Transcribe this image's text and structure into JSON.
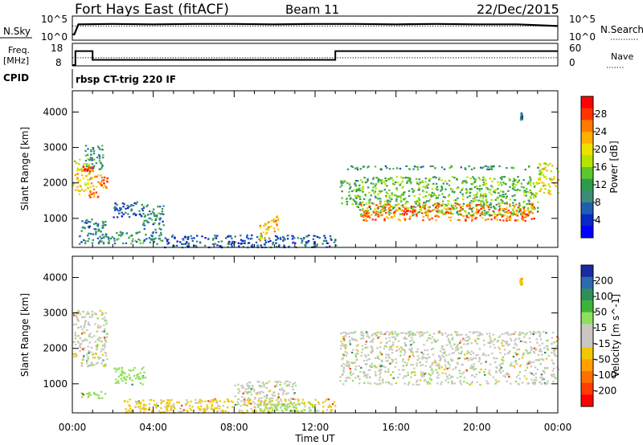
{
  "header": {
    "station": "Fort Hays East (fitACF)",
    "beam": "Beam 11",
    "date": "22/Dec/2015"
  },
  "strip_panels": {
    "nsky": {
      "left_label": "N.Sky",
      "right_label": "N.Search",
      "left_ticks": [
        "10^5",
        "10^0"
      ],
      "right_ticks": [
        "10^5",
        "10^0"
      ]
    },
    "freq": {
      "left_label_1": "Freq.",
      "left_label_2": "[MHz]",
      "left_ticks": [
        "18",
        "8"
      ],
      "right_label": "Nave",
      "right_ticks": [
        "60",
        "0"
      ],
      "cpid_label": "CPID",
      "cpid_value": "rbsp CT-trig 220 IF"
    }
  },
  "x_axis": {
    "label": "Time UT",
    "ticks": [
      "00:00",
      "04:00",
      "08:00",
      "12:00",
      "16:00",
      "20:00",
      "00:00"
    ]
  },
  "power_colorbar": {
    "label": "Power [dB]",
    "ticks": [
      "28",
      "24",
      "20",
      "16",
      "12",
      "8",
      "4"
    ],
    "colors": [
      "#ff0000",
      "#ff3300",
      "#ff7a00",
      "#ffb000",
      "#f0e000",
      "#b4e400",
      "#5cc82c",
      "#2e9c4a",
      "#3c8c78",
      "#1f5fb0",
      "#0a28c8",
      "#0000ff"
    ]
  },
  "velocity_colorbar": {
    "label": "Velocity [m s^-1]",
    "ticks": [
      "200",
      "100",
      "50",
      "15",
      "-15",
      "-50",
      "-100",
      "-200"
    ],
    "colors": [
      "#1a2aa0",
      "#2d6ab0",
      "#2e8f5a",
      "#3cb43c",
      "#8ce05a",
      "#c8c8c0",
      "#c8c8c0",
      "#f0c800",
      "#ffa000",
      "#ff7000",
      "#ff3c00",
      "#ff0000"
    ]
  },
  "chart_data": [
    {
      "type": "line",
      "title": "N.Sky / N.Search",
      "x_unit": "hours UT",
      "xlim": [
        0,
        24
      ],
      "x": [
        0,
        0.1,
        0.3,
        2,
        4,
        6,
        8,
        10,
        12,
        14,
        16,
        18,
        20,
        22,
        23.5,
        24
      ],
      "series": [
        {
          "name": "N.Sky",
          "values": [
            1,
            1,
            3.4,
            3.5,
            3.4,
            3.5,
            3.5,
            3.4,
            3.5,
            3.5,
            3.4,
            3.5,
            3.4,
            3.4,
            3.1,
            3.0
          ]
        },
        {
          "name": "N.Search",
          "values": [
            3.0,
            3.0,
            3.0,
            3.0,
            3.0,
            3.0,
            3.0,
            3.0,
            3.0,
            3.0,
            3.0,
            3.0,
            3.0,
            3.0,
            3.0,
            3.0
          ]
        }
      ],
      "ylim": [
        0,
        5
      ],
      "scale": "log10"
    },
    {
      "type": "line",
      "title": "Freq. / Nave",
      "xlim": [
        0,
        24
      ],
      "series": [
        {
          "name": "Freq. [MHz]",
          "x": [
            0,
            0.15,
            0.15,
            1.0,
            1.0,
            13.0,
            13.0,
            24
          ],
          "values": [
            8,
            8,
            14.7,
            14.7,
            10.5,
            10.5,
            14.7,
            14.7
          ]
        },
        {
          "name": "Nave",
          "x": [
            0,
            24
          ],
          "values": [
            21,
            21
          ]
        }
      ],
      "ylim_left": [
        8,
        18
      ],
      "ylim_right": [
        0,
        60
      ]
    },
    {
      "type": "heatmap",
      "title": "Power [dB]",
      "xlabel": "Time UT",
      "ylabel": "Slant Range [km]",
      "xlim": [
        0,
        24
      ],
      "ylim": [
        180,
        4600
      ],
      "yticks": [
        1000,
        2000,
        3000,
        4000
      ],
      "regions": [
        {
          "t0": 0.0,
          "t1": 0.9,
          "r0": 1700,
          "r1": 2700,
          "level": 20
        },
        {
          "t0": 0.3,
          "t1": 1.0,
          "r0": 2350,
          "r1": 2500,
          "level": 28
        },
        {
          "t0": 0.8,
          "t1": 1.7,
          "r0": 1600,
          "r1": 2300,
          "level": 26
        },
        {
          "t0": 0.6,
          "t1": 1.5,
          "r0": 2400,
          "r1": 3100,
          "level": 10
        },
        {
          "t0": 0.3,
          "t1": 1.6,
          "r0": 300,
          "r1": 1000,
          "level": 8
        },
        {
          "t0": 2.0,
          "t1": 3.5,
          "r0": 1050,
          "r1": 1500,
          "level": 6
        },
        {
          "t0": 3.4,
          "t1": 4.5,
          "r0": 700,
          "r1": 1400,
          "level": 9
        },
        {
          "t0": 1.5,
          "t1": 4.5,
          "r0": 300,
          "r1": 650,
          "level": 10
        },
        {
          "t0": 4.5,
          "t1": 13.0,
          "r0": 200,
          "r1": 550,
          "level": 6
        },
        {
          "t0": 9.2,
          "t1": 9.7,
          "r0": 350,
          "r1": 900,
          "level": 22
        },
        {
          "t0": 9.6,
          "t1": 10.2,
          "r0": 650,
          "r1": 1150,
          "level": 24
        },
        {
          "t0": 13.5,
          "t1": 23.0,
          "r0": 2400,
          "r1": 2500,
          "level": 10
        },
        {
          "t0": 13.2,
          "t1": 14.2,
          "r0": 1400,
          "r1": 2100,
          "level": 12
        },
        {
          "t0": 14.0,
          "t1": 23.0,
          "r0": 1100,
          "r1": 2200,
          "level": 14
        },
        {
          "t0": 14.2,
          "t1": 22.8,
          "r0": 950,
          "r1": 1450,
          "level": 26
        },
        {
          "t0": 23.0,
          "t1": 24.0,
          "r0": 1700,
          "r1": 2600,
          "level": 20
        },
        {
          "t0": 22.1,
          "t1": 22.2,
          "r0": 3800,
          "r1": 4000,
          "level": 8
        }
      ]
    },
    {
      "type": "heatmap",
      "title": "Velocity [m s^-1]",
      "xlabel": "Time UT",
      "ylabel": "Slant Range [km]",
      "xlim": [
        0,
        24
      ],
      "ylim": [
        180,
        4600
      ],
      "yticks": [
        1000,
        2000,
        3000,
        4000
      ],
      "regions": [
        {
          "t0": 0.0,
          "t1": 1.7,
          "r0": 1500,
          "r1": 3100,
          "velocity": 0
        },
        {
          "t0": 2.0,
          "t1": 3.6,
          "r0": 1000,
          "r1": 1500,
          "velocity": 40
        },
        {
          "t0": 0.3,
          "t1": 1.6,
          "r0": 600,
          "r1": 800,
          "velocity": 40
        },
        {
          "t0": 2.5,
          "t1": 13.0,
          "r0": 200,
          "r1": 600,
          "velocity": -25
        },
        {
          "t0": 8.0,
          "t1": 11.0,
          "r0": 400,
          "r1": 1100,
          "velocity": 0
        },
        {
          "t0": 9.0,
          "t1": 12.0,
          "r0": 250,
          "r1": 500,
          "velocity": 40
        },
        {
          "t0": 13.2,
          "t1": 24.0,
          "r0": 1000,
          "r1": 2500,
          "velocity": 0
        },
        {
          "t0": 13.5,
          "t1": 23.0,
          "r0": 2400,
          "r1": 2500,
          "velocity": 0
        },
        {
          "t0": 22.1,
          "t1": 22.2,
          "r0": 3800,
          "r1": 4000,
          "velocity": -40
        }
      ]
    }
  ]
}
